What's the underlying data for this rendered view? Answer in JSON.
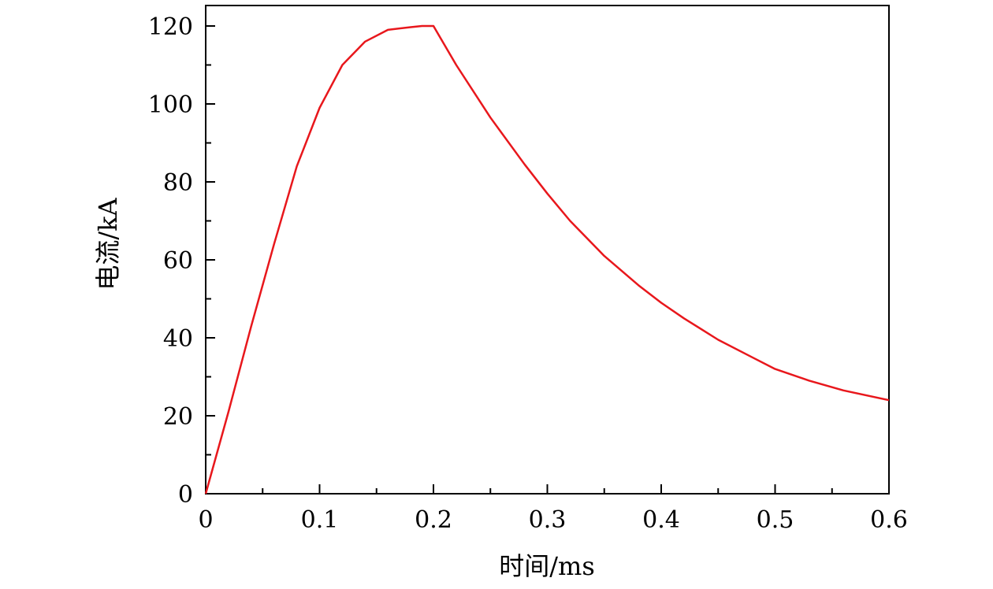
{
  "chart_data": {
    "type": "line",
    "xlabel": "时间/ms",
    "ylabel": "电流/kA",
    "xlim": [
      0,
      0.6
    ],
    "ylim": [
      0,
      125
    ],
    "x_ticks": [
      0,
      0.1,
      0.2,
      0.3,
      0.4,
      0.5,
      0.6
    ],
    "x_tick_labels": [
      "0",
      "0.1",
      "0.2",
      "0.3",
      "0.4",
      "0.5",
      "0.6"
    ],
    "y_ticks": [
      0,
      20,
      40,
      60,
      80,
      100,
      120
    ],
    "y_tick_labels": [
      "0",
      "20",
      "40",
      "60",
      "80",
      "100",
      "120"
    ],
    "grid": false,
    "series": [
      {
        "color": "#e8171c",
        "x": [
          0,
          0.02,
          0.04,
          0.06,
          0.08,
          0.1,
          0.12,
          0.14,
          0.16,
          0.18,
          0.19,
          0.2,
          0.22,
          0.25,
          0.28,
          0.3,
          0.32,
          0.35,
          0.38,
          0.4,
          0.42,
          0.45,
          0.48,
          0.5,
          0.53,
          0.56,
          0.6
        ],
        "y": [
          0,
          21,
          43,
          64,
          84,
          99,
          110,
          116,
          119,
          119.7,
          120,
          120,
          110,
          96.5,
          84.5,
          77,
          70,
          61,
          53.5,
          49,
          45,
          39.5,
          35,
          32,
          29,
          26.5,
          24
        ]
      }
    ]
  }
}
